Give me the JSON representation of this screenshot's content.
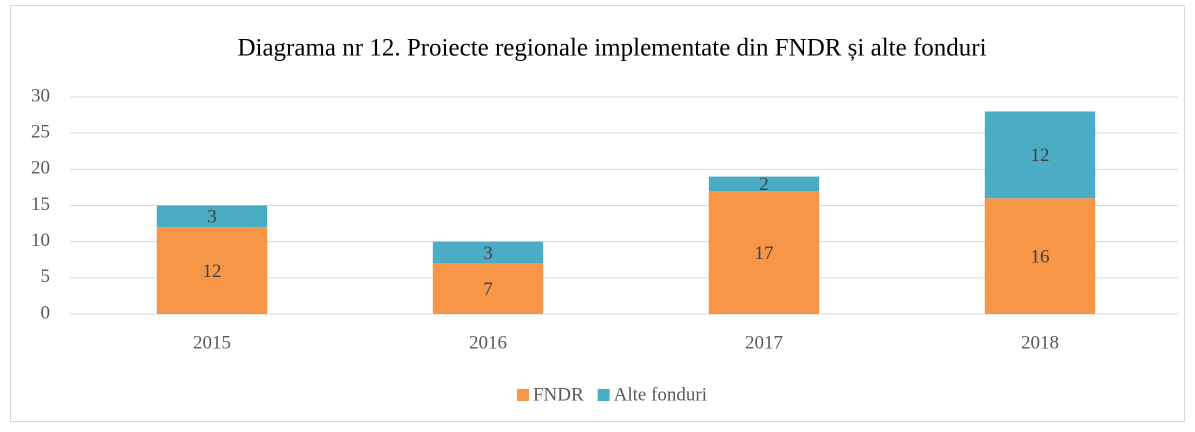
{
  "chart_data": {
    "type": "bar",
    "stacked": true,
    "title": "Diagrama nr 12.  Proiecte regionale implementate din FNDR și alte fonduri",
    "categories": [
      "2015",
      "2016",
      "2017",
      "2018"
    ],
    "series": [
      {
        "name": "FNDR",
        "color": "#f79646",
        "values": [
          12,
          7,
          17,
          16
        ]
      },
      {
        "name": "Alte fonduri",
        "color": "#4bacc6",
        "values": [
          3,
          3,
          2,
          12
        ]
      }
    ],
    "ylim": [
      0,
      30
    ],
    "yticks": [
      0,
      5,
      10,
      15,
      20,
      25,
      30
    ],
    "grid": true,
    "legend": "bottom"
  }
}
